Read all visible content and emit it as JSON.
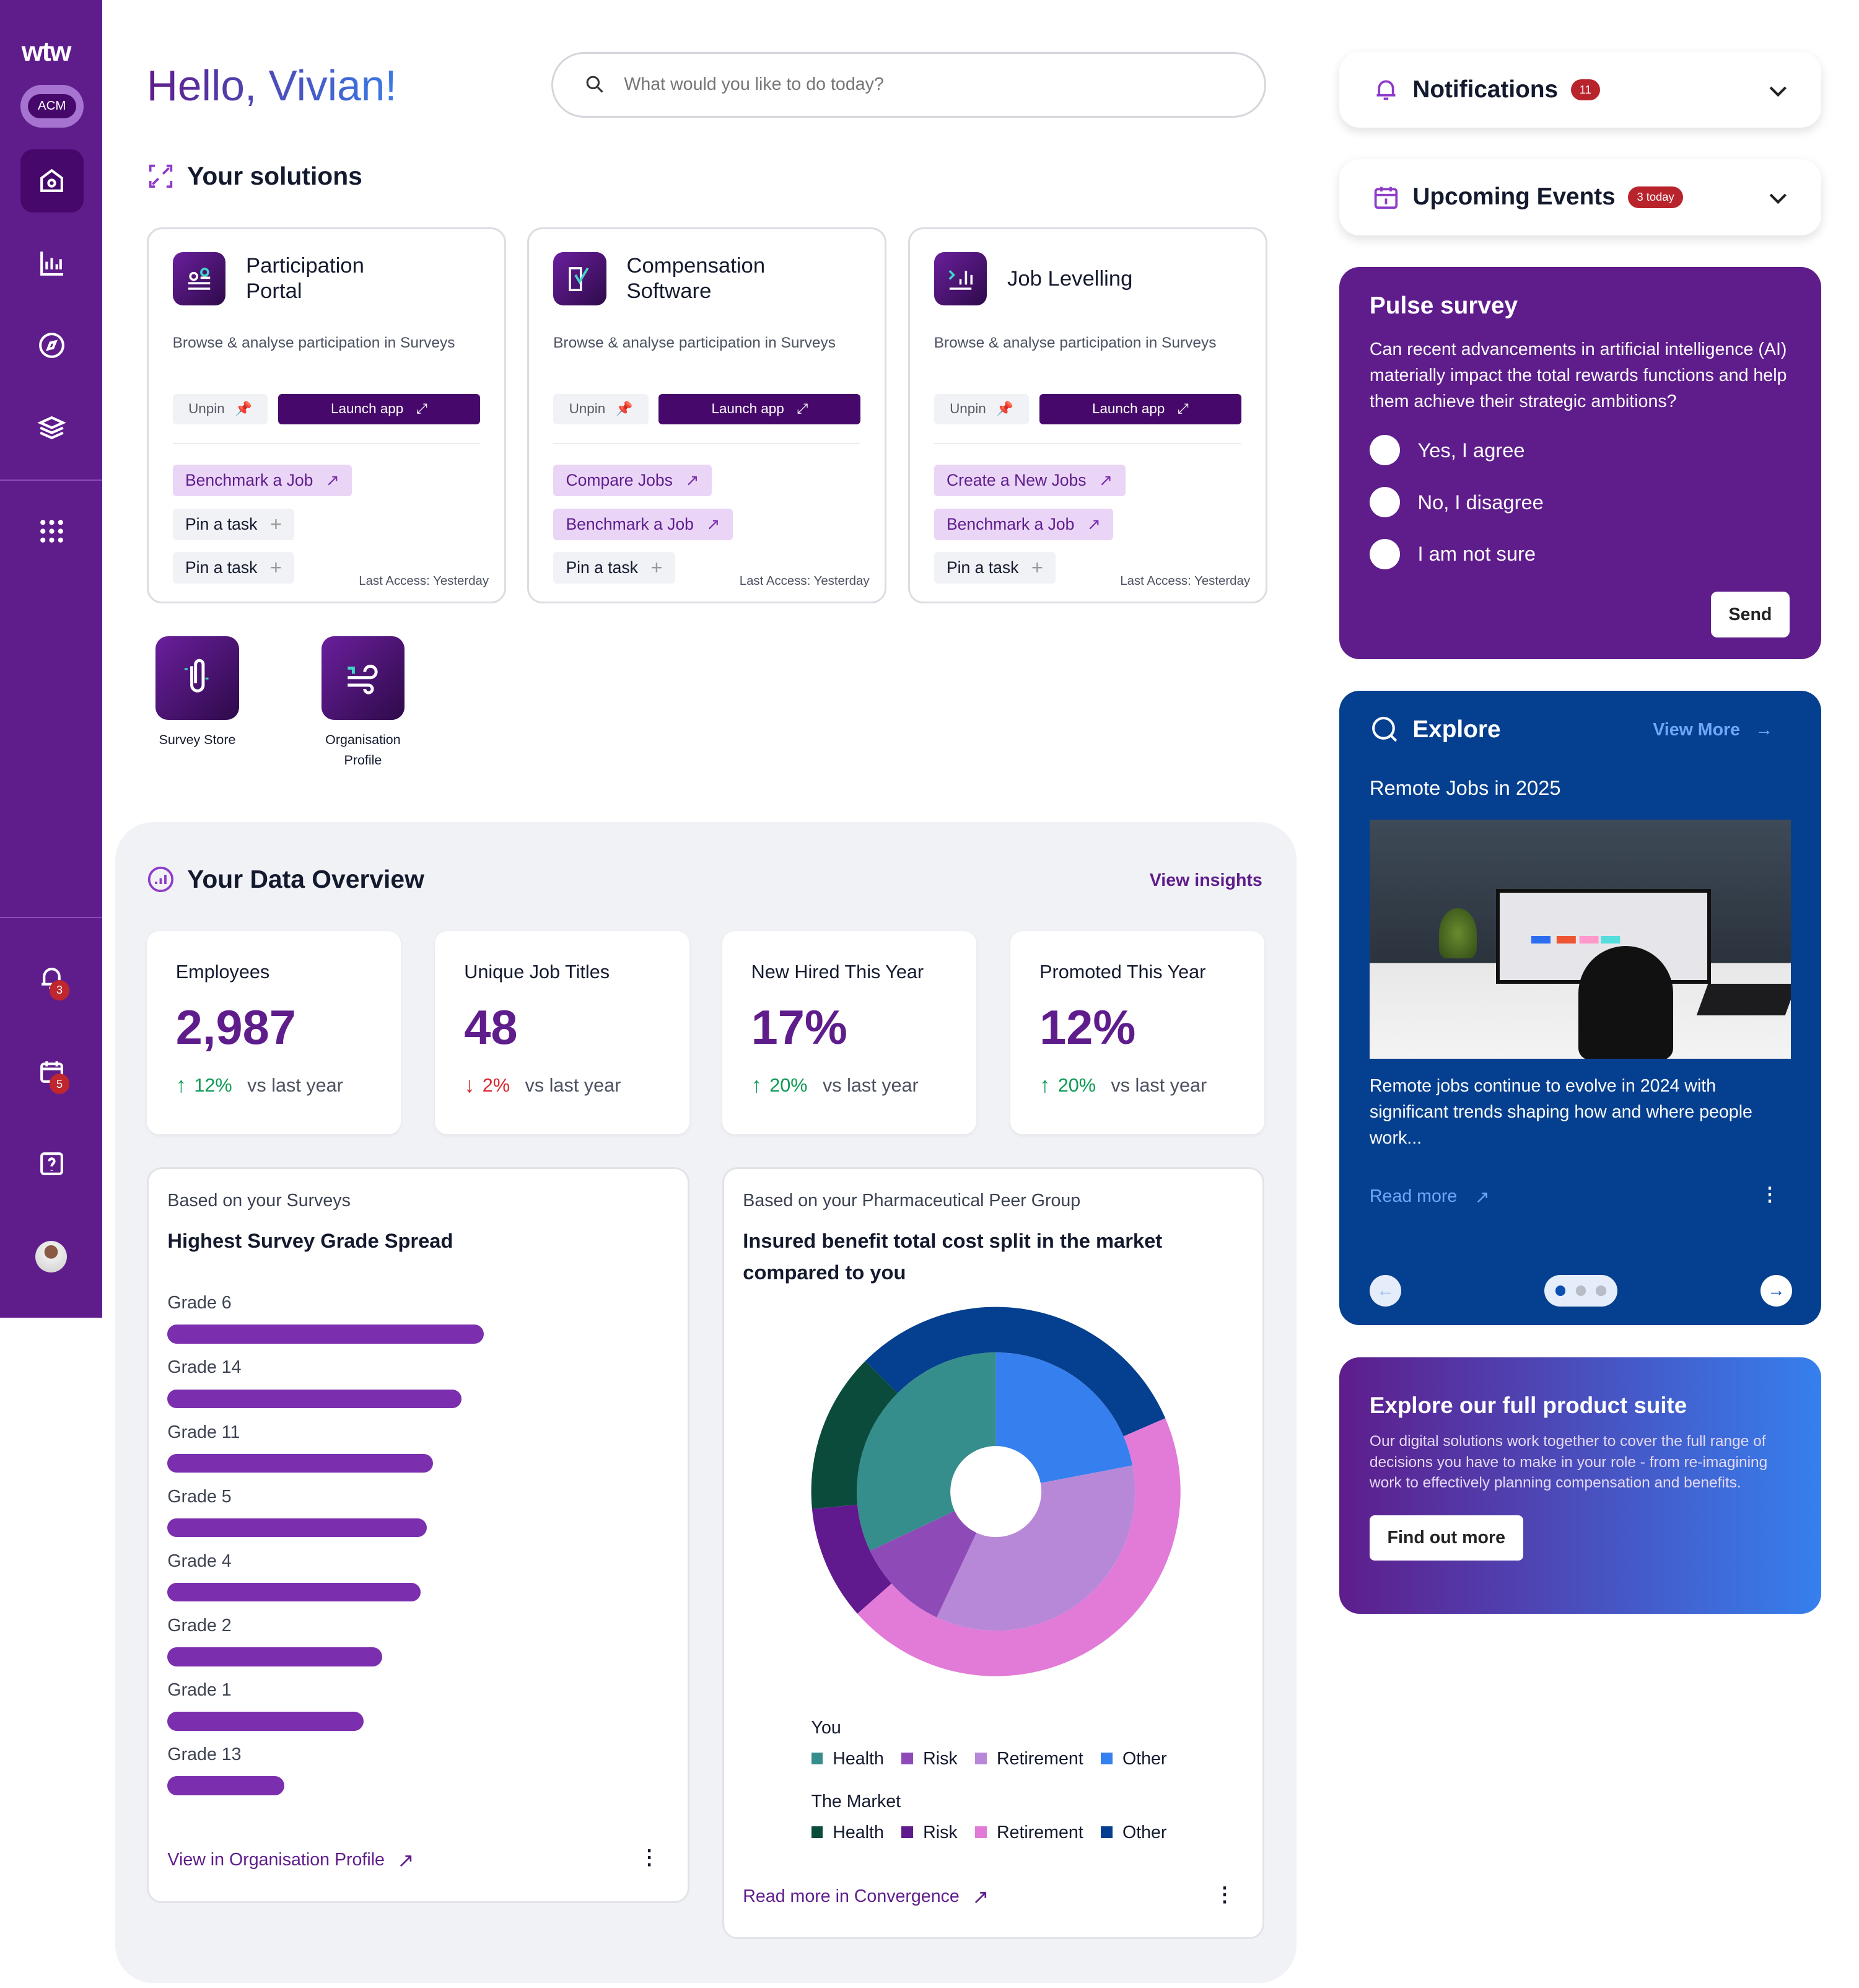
{
  "brand": {
    "logo": "wtw",
    "org_badge": "ACM"
  },
  "sidebar": {
    "items": [
      {
        "name": "home",
        "icon": "home-icon"
      },
      {
        "name": "analytics",
        "icon": "bar-chart-icon"
      },
      {
        "name": "explore",
        "icon": "compass-icon"
      },
      {
        "name": "layers",
        "icon": "layers-icon"
      },
      {
        "name": "apps",
        "icon": "grid-icon"
      }
    ],
    "bottom": [
      {
        "name": "notifications",
        "icon": "bell-icon",
        "badge": "3"
      },
      {
        "name": "calendar",
        "icon": "calendar-icon",
        "badge": "5"
      },
      {
        "name": "help",
        "icon": "help-icon"
      },
      {
        "name": "profile",
        "icon": "avatar"
      }
    ]
  },
  "header": {
    "greeting": "Hello, Vivian!",
    "search_placeholder": "What would you like to do today?"
  },
  "solutions": {
    "title": "Your solutions",
    "cards": [
      {
        "title": "Participation Portal",
        "desc": "Browse & analyse participation in Surveys",
        "unpin": "Unpin",
        "launch": "Launch app",
        "tasks": [
          {
            "label": "Benchmark a Job",
            "type": "link"
          },
          {
            "label": "Pin a task",
            "type": "pin"
          },
          {
            "label": "Pin a task",
            "type": "pin"
          }
        ],
        "last_access": "Last Access: Yesterday"
      },
      {
        "title": "Compensation Software",
        "desc": "Browse & analyse participation in Surveys",
        "unpin": "Unpin",
        "launch": "Launch app",
        "tasks": [
          {
            "label": "Compare Jobs",
            "type": "link"
          },
          {
            "label": "Benchmark a Job",
            "type": "link"
          },
          {
            "label": "Pin a task",
            "type": "pin"
          }
        ],
        "last_access": "Last Access: Yesterday"
      },
      {
        "title": "Job Levelling",
        "desc": "Browse & analyse participation in Surveys",
        "unpin": "Unpin",
        "launch": "Launch app",
        "tasks": [
          {
            "label": "Create a New Jobs",
            "type": "link"
          },
          {
            "label": "Benchmark a Job",
            "type": "link"
          },
          {
            "label": "Pin a task",
            "type": "pin"
          }
        ],
        "last_access": "Last Access: Yesterday"
      }
    ],
    "tiles": [
      {
        "label": "Survey Store"
      },
      {
        "label": "Organisation Profile"
      }
    ]
  },
  "overview": {
    "title": "Your Data Overview",
    "view_insights": "View insights",
    "stats": [
      {
        "label": "Employees",
        "value": "2,987",
        "change": "12%",
        "direction": "up",
        "suffix": "vs last year"
      },
      {
        "label": "Unique Job Titles",
        "value": "48",
        "change": "2%",
        "direction": "down",
        "suffix": "vs last year"
      },
      {
        "label": "New Hired This Year",
        "value": "17%",
        "change": "20%",
        "direction": "up",
        "suffix": "vs last year"
      },
      {
        "label": "Promoted This Year",
        "value": "12%",
        "change": "20%",
        "direction": "up",
        "suffix": "vs last year"
      }
    ],
    "grade_card": {
      "subtitle": "Based on your Surveys",
      "title": "Highest Survey Grade Spread",
      "link": "View in Organisation Profile"
    },
    "donut_card": {
      "subtitle": "Based on your Pharmaceutical Peer Group",
      "title": "Insured benefit total cost split in the market compared to you",
      "link": "Read more in Convergence"
    }
  },
  "chart_data": [
    {
      "type": "bar",
      "orientation": "horizontal",
      "categories": [
        "Grade 6",
        "Grade 14",
        "Grade 11",
        "Grade 5",
        "Grade 4",
        "Grade 2",
        "Grade 1",
        "Grade 13"
      ],
      "values": [
        100,
        93,
        84,
        82,
        80,
        68,
        62,
        37
      ],
      "color": "#7b2fae",
      "title": "Highest Survey Grade Spread"
    },
    {
      "type": "pie",
      "subtype": "nested-donut",
      "title": "Insured benefit total cost split in the market compared to you",
      "series": [
        {
          "name": "You",
          "ring": "inner",
          "categories": [
            "Other",
            "Retirement",
            "Risk",
            "Health"
          ],
          "values": [
            22,
            35,
            11,
            32
          ],
          "colors": [
            "#3580ee",
            "#b888d8",
            "#8e4bb8",
            "#368e8c"
          ]
        },
        {
          "name": "The Market",
          "ring": "outer",
          "categories": [
            "Other",
            "Retirement",
            "Risk",
            "Health"
          ],
          "values": [
            31,
            45,
            10,
            14
          ],
          "colors": [
            "#053f8f",
            "#e27ad8",
            "#601a8e",
            "#0b4b3c"
          ]
        }
      ],
      "legend_order": [
        "Health",
        "Risk",
        "Retirement",
        "Other"
      ],
      "legend_placement": "bottom"
    }
  ],
  "right": {
    "notifications": {
      "title": "Notifications",
      "badge": "11"
    },
    "events": {
      "title": "Upcoming Events",
      "badge": "3 today"
    },
    "pulse": {
      "title": "Pulse survey",
      "question": "Can recent advancements in artificial intelligence (AI) materially impact the total rewards functions and help them achieve their strategic ambitions?",
      "options": [
        "Yes, I agree",
        "No, I disagree",
        "I am not sure"
      ],
      "send": "Send"
    },
    "explore": {
      "title": "Explore",
      "view_more": "View More",
      "article_title": "Remote Jobs in 2025",
      "article_text": "Remote jobs continue to evolve in 2024 with significant trends shaping how and where people work...",
      "read_more": "Read more",
      "page": 1,
      "pages": 3
    },
    "suite": {
      "title": "Explore our full product suite",
      "text": "Our digital solutions work together to cover the full range of decisions you have to make in your role - from re-imagining work to effectively planning compensation and benefits.",
      "button": "Find out more"
    }
  },
  "colors": {
    "primary": "#5f1d8c",
    "dark": "#46096b",
    "blue": "#053f8f",
    "accent_link": "#ead5f7",
    "badge": "#b8232c"
  }
}
